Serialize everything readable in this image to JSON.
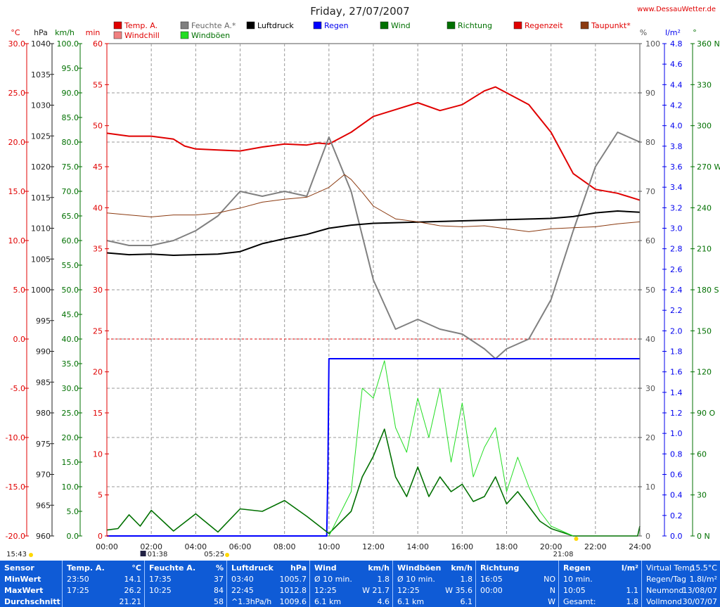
{
  "header": {
    "title": "Friday, 27/07/2007",
    "site": "www.DessauWetter.de"
  },
  "legend": [
    {
      "label": "Temp. A.",
      "color": "#e00000"
    },
    {
      "label": "Windchill",
      "color": "#f08080"
    },
    {
      "label": "Feuchte A.*",
      "color": "#808080"
    },
    {
      "label": "Windböen",
      "color": "#22dd22"
    },
    {
      "label": "Luftdruck",
      "color": "#000000"
    },
    {
      "label": "Regen",
      "color": "#0000ff"
    },
    {
      "label": "Wind",
      "color": "#007000"
    },
    {
      "label": "Richtung",
      "color": "#007000"
    },
    {
      "label": "Regenzeit",
      "color": "#e00000"
    },
    {
      "label": "Taupunkt*",
      "color": "#8b3a10"
    }
  ],
  "axis_units": {
    "temp": "°C",
    "pressure": "hPa",
    "wind": "km/h",
    "min": "min",
    "humidity": "%",
    "rain": "l/m²",
    "direction": "°"
  },
  "axes": {
    "temp": [
      "30.0",
      "25.0",
      "20.0",
      "15.0",
      "10.0",
      "5.0",
      "0.0",
      "-5.0",
      "-10.0",
      "-15.0",
      "-20.0"
    ],
    "pressure": [
      "1040",
      "1035",
      "1030",
      "1025",
      "1020",
      "1015",
      "1010",
      "1005",
      "1000",
      "995",
      "990",
      "985",
      "980",
      "975",
      "970",
      "965",
      "960"
    ],
    "wind": [
      "100.0",
      "95.0",
      "90.0",
      "85.0",
      "80.0",
      "75.0",
      "70.0",
      "65.0",
      "60.0",
      "55.0",
      "50.0",
      "45.0",
      "40.0",
      "35.0",
      "30.0",
      "25.0",
      "20.0",
      "15.0",
      "10.0",
      "5.0",
      "0.0"
    ],
    "min": [
      "60",
      "55",
      "50",
      "45",
      "40",
      "35",
      "30",
      "25",
      "20",
      "15",
      "10",
      "5",
      "0"
    ],
    "humidity": [
      "100",
      "90",
      "80",
      "70",
      "60",
      "50",
      "40",
      "30",
      "20",
      "10",
      "0"
    ],
    "rain": [
      "4.8",
      "4.6",
      "4.4",
      "4.2",
      "4.0",
      "3.8",
      "3.6",
      "3.4",
      "3.2",
      "3.0",
      "2.8",
      "2.6",
      "2.4",
      "2.2",
      "2.0",
      "1.8",
      "1.6",
      "1.4",
      "1.2",
      "1.0",
      "0.8",
      "0.6",
      "0.4",
      "0.2",
      "0.0"
    ],
    "direction": [
      "360 N",
      "330",
      "300",
      "270 W",
      "240",
      "210",
      "180 S",
      "150",
      "120",
      "90 O",
      "60",
      "30",
      "0 N"
    ],
    "time": [
      "00:00",
      "02:00",
      "04:00",
      "06:00",
      "08:00",
      "10:00",
      "12:00",
      "14:00",
      "16:00",
      "18:00",
      "20:00",
      "22:00",
      "24:00"
    ]
  },
  "sun_moon": {
    "sunrise": "05:25",
    "sunset": "21:08",
    "moonrise": "15:43",
    "moonset": "01:38"
  },
  "chart_data": {
    "type": "line",
    "x_unit": "hour of day",
    "xlim": [
      0,
      24
    ],
    "series": [
      {
        "name": "Temp. A.",
        "axis": "°C",
        "ylim": [
          -20,
          30
        ],
        "x": [
          0,
          1,
          2,
          3,
          3.5,
          4,
          5,
          6,
          7,
          8,
          9,
          9.5,
          10,
          11,
          12,
          13,
          14,
          15,
          16,
          17,
          17.5,
          18,
          19,
          20,
          21,
          22,
          23,
          24
        ],
        "y": [
          20.9,
          20.6,
          20.6,
          20.3,
          19.6,
          19.3,
          19.2,
          19.1,
          19.5,
          19.8,
          19.7,
          19.9,
          19.8,
          21.0,
          22.6,
          23.3,
          24.0,
          23.2,
          23.8,
          25.2,
          25.6,
          25.0,
          23.8,
          21.0,
          16.8,
          15.2,
          14.8,
          14.1
        ]
      },
      {
        "name": "Feuchte A.*",
        "axis": "%",
        "ylim": [
          0,
          100
        ],
        "x": [
          0,
          1,
          2,
          3,
          4,
          5,
          6,
          7,
          8,
          9,
          10,
          11,
          12,
          13,
          14,
          15,
          16,
          17,
          17.5,
          18,
          19,
          20,
          21,
          22,
          23,
          24
        ],
        "y": [
          60,
          59,
          59,
          60,
          62,
          65,
          70,
          69,
          70,
          69,
          81,
          70,
          52,
          42,
          44,
          42,
          41,
          38,
          36,
          38,
          40,
          48,
          62,
          75,
          82,
          80
        ]
      },
      {
        "name": "Luftdruck",
        "axis": "hPa",
        "ylim": [
          960,
          1040
        ],
        "x": [
          0,
          1,
          2,
          3,
          4,
          5,
          6,
          7,
          8,
          9,
          10,
          11,
          12,
          13,
          14,
          15,
          16,
          17,
          18,
          19,
          20,
          21,
          22,
          23,
          24
        ],
        "y": [
          1006.0,
          1005.7,
          1005.8,
          1005.6,
          1005.7,
          1005.8,
          1006.2,
          1007.5,
          1008.3,
          1009.0,
          1010.0,
          1010.5,
          1010.8,
          1010.9,
          1011.0,
          1011.1,
          1011.2,
          1011.3,
          1011.4,
          1011.5,
          1011.6,
          1011.9,
          1012.5,
          1012.8,
          1012.6
        ]
      },
      {
        "name": "Taupunkt*",
        "axis": "°C",
        "ylim": [
          -20,
          30
        ],
        "x": [
          0,
          1,
          2,
          3,
          4,
          5,
          6,
          7,
          8,
          9,
          10,
          10.7,
          11,
          11.5,
          12,
          13,
          14,
          15,
          16,
          17,
          18,
          19,
          20,
          21,
          22,
          23,
          24
        ],
        "y": [
          12.8,
          12.6,
          12.4,
          12.6,
          12.6,
          12.8,
          13.3,
          13.9,
          14.2,
          14.4,
          15.4,
          16.7,
          16.2,
          14.9,
          13.5,
          12.2,
          11.9,
          11.5,
          11.4,
          11.5,
          11.2,
          10.9,
          11.2,
          11.3,
          11.4,
          11.7,
          11.9
        ]
      },
      {
        "name": "Regen",
        "axis": "l/m²",
        "ylim": [
          0,
          5.0
        ],
        "x": [
          0,
          9.9,
          9.95,
          10,
          24
        ],
        "y": [
          0,
          0,
          0.6,
          1.8,
          1.8
        ]
      },
      {
        "name": "Wind",
        "axis": "km/h",
        "ylim": [
          0,
          100
        ],
        "x": [
          0,
          0.5,
          1,
          1.5,
          2,
          3,
          4,
          5,
          6,
          7,
          8,
          9,
          10,
          11,
          11.5,
          12,
          12.5,
          13,
          13.5,
          14,
          14.5,
          15,
          15.5,
          16,
          16.5,
          17,
          17.5,
          18,
          18.5,
          19,
          19.5,
          20,
          21,
          22,
          23,
          23.9,
          24
        ],
        "y": [
          1.2,
          1.5,
          4.3,
          2,
          5.2,
          1,
          4.5,
          0.8,
          5.5,
          5,
          7.2,
          4,
          0.5,
          5,
          12,
          16.2,
          21.7,
          12,
          8,
          14,
          8,
          12,
          9,
          10.5,
          7,
          8,
          12,
          6.5,
          9,
          6,
          3,
          1.5,
          0,
          0,
          0,
          0,
          2
        ]
      },
      {
        "name": "Windböen",
        "axis": "km/h",
        "ylim": [
          0,
          100
        ],
        "x": [
          10,
          11,
          11.5,
          12,
          12.5,
          13,
          13.5,
          14,
          14.5,
          15,
          15.5,
          16,
          16.5,
          17,
          17.5,
          18,
          18.5,
          19,
          19.5,
          20,
          21
        ],
        "y": [
          0,
          9,
          30,
          28,
          35.6,
          22,
          17,
          28,
          20,
          30,
          15,
          27,
          12,
          18,
          22,
          9,
          16,
          10,
          5,
          2,
          0
        ]
      }
    ]
  },
  "stats": {
    "sensor": {
      "title": "Sensor",
      "rows": [
        "MinWert",
        "MaxWert",
        "Durchschnitt"
      ]
    },
    "temp": {
      "title": "Temp. A.",
      "unit": "°C",
      "rows": [
        [
          "23:50",
          "14.1"
        ],
        [
          "17:25",
          "26.2"
        ],
        [
          "",
          "21.21"
        ]
      ]
    },
    "humidity": {
      "title": "Feuchte A.",
      "unit": "%",
      "rows": [
        [
          "17:35",
          "37"
        ],
        [
          "10:25",
          "84"
        ],
        [
          "",
          "58"
        ]
      ]
    },
    "pressure": {
      "title": "Luftdruck",
      "unit": "hPa",
      "rows": [
        [
          "03:40",
          "1005.7"
        ],
        [
          "22:45",
          "1012.8"
        ],
        [
          "^1.3hPa/h",
          "1009.6"
        ]
      ]
    },
    "wind": {
      "title": "Wind",
      "unit": "km/h",
      "rows": [
        [
          "Ø 10 min.",
          "1.8"
        ],
        [
          "12:25",
          "W 21.7"
        ],
        [
          "6.1 km",
          "4.6"
        ]
      ]
    },
    "gusts": {
      "title": "Windböen",
      "unit": "km/h",
      "rows": [
        [
          "Ø 10 min.",
          "1.8"
        ],
        [
          "12:25",
          "W 35.6"
        ],
        [
          "6.1 km",
          "6.1"
        ]
      ]
    },
    "direction": {
      "title": "Richtung",
      "unit": "",
      "rows": [
        [
          "16:05",
          "NO"
        ],
        [
          "00:00",
          "N"
        ],
        [
          "",
          "W"
        ]
      ]
    },
    "rain": {
      "title": "Regen",
      "unit": "l/m²",
      "rows": [
        [
          "10 min.",
          ""
        ],
        [
          "10:05",
          "1.1"
        ],
        [
          "Gesamt:",
          "1.8"
        ]
      ]
    },
    "virtual": {
      "rows": [
        [
          "Virtual Temp",
          "15.5°C"
        ],
        [
          "Regen/Tag",
          "1.8l/m²"
        ],
        [
          "Neumond",
          "13/08/07"
        ],
        [
          "Vollmond",
          "30/07/07"
        ]
      ]
    }
  }
}
